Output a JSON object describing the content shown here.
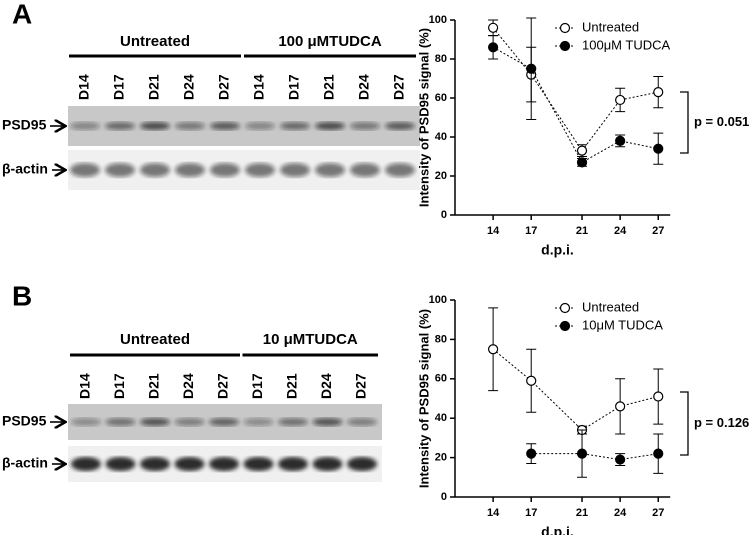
{
  "panels": [
    {
      "letter": "A",
      "groups": [
        {
          "label": "Untreated",
          "lanes": [
            "D14",
            "D17",
            "D21",
            "D24",
            "D27"
          ]
        },
        {
          "label": "100 μMTUDCA",
          "lanes": [
            "D14",
            "D17",
            "D21",
            "D24",
            "D27"
          ]
        }
      ],
      "rows": [
        "PSD95",
        "β-actin"
      ]
    },
    {
      "letter": "B",
      "groups": [
        {
          "label": "Untreated",
          "lanes": [
            "D14",
            "D17",
            "D21",
            "D24",
            "D27"
          ]
        },
        {
          "label": "10 μMTUDCA",
          "lanes": [
            "D17",
            "D21",
            "D24",
            "D27"
          ]
        }
      ],
      "rows": [
        "PSD95",
        "β-actin"
      ]
    }
  ],
  "chart_data": [
    {
      "type": "line",
      "ylabel": "Intensity of PSD95 signal (%)",
      "xlabel": "d.p.i.",
      "x": [
        14,
        17,
        21,
        24,
        27
      ],
      "xlim": [
        11,
        29.5
      ],
      "xticks": [
        14,
        17,
        21,
        24,
        27
      ],
      "ylim": [
        0,
        100
      ],
      "yticks": [
        0,
        20,
        40,
        60,
        80,
        100
      ],
      "series": [
        {
          "name": "Untreated",
          "color": "#000000",
          "marker": "open",
          "values": [
            96,
            72,
            33,
            59,
            63
          ],
          "errors": [
            4,
            14,
            3,
            6,
            8
          ]
        },
        {
          "name": "100μM TUDCA",
          "color": "#000000",
          "marker": "filled",
          "values": [
            86,
            75,
            27,
            38,
            34
          ],
          "errors": [
            6,
            26,
            2,
            3,
            8
          ]
        }
      ],
      "annotation": "p = 0.051"
    },
    {
      "type": "line",
      "ylabel": "Intensity of PSD95 signal (%)",
      "xlabel": "d.p.i.",
      "x": [
        14,
        17,
        21,
        24,
        27
      ],
      "xlim": [
        11,
        29.5
      ],
      "xticks": [
        14,
        17,
        21,
        24,
        27
      ],
      "ylim": [
        0,
        100
      ],
      "yticks": [
        0,
        20,
        40,
        60,
        80,
        100
      ],
      "series": [
        {
          "name": "Untreated",
          "color": "#000000",
          "marker": "open",
          "values": [
            75,
            59,
            34,
            46,
            51
          ],
          "errors": [
            21,
            16,
            2,
            14,
            14
          ]
        },
        {
          "name": "10μM TUDCA",
          "color": "#000000",
          "marker": "filled",
          "values": [
            null,
            22,
            22,
            19,
            22
          ],
          "errors": [
            null,
            5,
            12,
            3,
            10
          ]
        }
      ],
      "annotation": "p = 0.126"
    }
  ]
}
